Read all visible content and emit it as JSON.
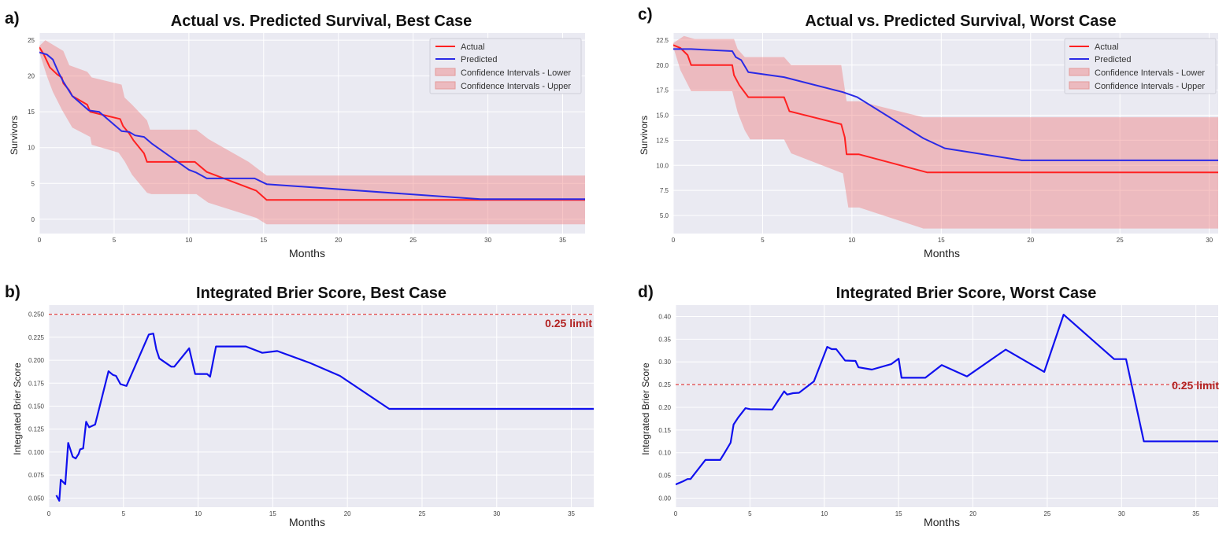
{
  "colors": {
    "actual": "#ff2020",
    "predicted": "#2a2ae6",
    "ci_fill": "#f08080",
    "brier": "#1010ee",
    "limit": "#e03030",
    "plot_bg": "#eaeaf2",
    "grid": "#ffffff"
  },
  "chart_data": [
    {
      "id": "a",
      "panel_label": "a)",
      "type": "line",
      "title": "Actual vs. Predicted Survival, Best Case",
      "xlabel": "Months",
      "ylabel": "Survivors",
      "xlim": [
        0,
        36.5
      ],
      "ylim": [
        -2,
        26
      ],
      "xticks": [
        0,
        5,
        10,
        15,
        20,
        25,
        30,
        35
      ],
      "yticks": [
        0,
        5,
        10,
        15,
        20,
        25
      ],
      "grid": true,
      "legend_position": "top-right",
      "legend": [
        "Actual",
        "Predicted",
        "Confidence Intervals - Lower",
        "Confidence Intervals - Upper"
      ],
      "actual": [
        [
          0,
          24
        ],
        [
          0.3,
          23
        ],
        [
          0.7,
          21.2
        ],
        [
          1.2,
          20.2
        ],
        [
          1.5,
          19.8
        ],
        [
          1.6,
          19
        ],
        [
          2,
          18
        ],
        [
          2.2,
          17.2
        ],
        [
          3.2,
          16
        ],
        [
          3.4,
          15
        ],
        [
          5.4,
          14
        ],
        [
          5.6,
          13
        ],
        [
          6,
          12
        ],
        [
          6.3,
          11
        ],
        [
          7,
          9.2
        ],
        [
          7.2,
          8
        ],
        [
          10.4,
          8
        ],
        [
          11.2,
          6.6
        ],
        [
          14.5,
          4
        ],
        [
          15.2,
          2.7
        ],
        [
          36.5,
          2.7
        ]
      ],
      "predicted": [
        [
          0,
          23.3
        ],
        [
          0.5,
          23
        ],
        [
          0.9,
          22.3
        ],
        [
          1.3,
          20.4
        ],
        [
          1.6,
          19.2
        ],
        [
          2.2,
          17.2
        ],
        [
          3.3,
          15.2
        ],
        [
          4,
          15
        ],
        [
          5.5,
          12.3
        ],
        [
          6,
          12.2
        ],
        [
          6.4,
          11.7
        ],
        [
          7,
          11.5
        ],
        [
          7.5,
          10.6
        ],
        [
          10,
          6.9
        ],
        [
          10.5,
          6.5
        ],
        [
          11.2,
          5.7
        ],
        [
          14.4,
          5.7
        ],
        [
          15.2,
          4.9
        ],
        [
          29.5,
          2.8
        ],
        [
          36.5,
          2.8
        ]
      ],
      "ci_upper": [
        [
          0,
          24.2
        ],
        [
          0.4,
          25
        ],
        [
          1.2,
          24
        ],
        [
          1.6,
          23.5
        ],
        [
          2,
          21.5
        ],
        [
          3.2,
          20.6
        ],
        [
          3.5,
          19.8
        ],
        [
          5.5,
          18.8
        ],
        [
          5.7,
          17
        ],
        [
          6.2,
          16
        ],
        [
          7.2,
          13.8
        ],
        [
          7.4,
          12.5
        ],
        [
          10.5,
          12.5
        ],
        [
          11.3,
          11.2
        ],
        [
          14,
          8
        ],
        [
          15.2,
          6.1
        ],
        [
          36.5,
          6.1
        ]
      ],
      "ci_lower": [
        [
          0,
          23.3
        ],
        [
          0.5,
          20
        ],
        [
          0.9,
          17.8
        ],
        [
          1.5,
          15.3
        ],
        [
          2.2,
          12.8
        ],
        [
          3.4,
          11.5
        ],
        [
          3.5,
          10.4
        ],
        [
          5.3,
          9.3
        ],
        [
          5.7,
          8.1
        ],
        [
          6.2,
          6.2
        ],
        [
          7.2,
          3.7
        ],
        [
          7.5,
          3.5
        ],
        [
          10.5,
          3.5
        ],
        [
          11.3,
          2.3
        ],
        [
          14.5,
          0.2
        ],
        [
          15.2,
          -0.7
        ],
        [
          36.5,
          -0.7
        ]
      ]
    },
    {
      "id": "c",
      "panel_label": "c)",
      "type": "line",
      "title": "Actual vs. Predicted Survival, Worst Case",
      "xlabel": "Months",
      "ylabel": "Survivors",
      "xlim": [
        0,
        30.5
      ],
      "ylim": [
        3.2,
        23.2
      ],
      "xticks": [
        0,
        5,
        10,
        15,
        20,
        25,
        30
      ],
      "yticks": [
        5.0,
        7.5,
        10.0,
        12.5,
        15.0,
        17.5,
        20.0,
        22.5
      ],
      "ytick_labels": [
        "5.0",
        "7.5",
        "10.0",
        "12.5",
        "15.0",
        "17.5",
        "20.0",
        "22.5"
      ],
      "grid": true,
      "legend_position": "top-right",
      "legend": [
        "Actual",
        "Predicted",
        "Confidence Intervals - Lower",
        "Confidence Intervals - Upper"
      ],
      "actual": [
        [
          0,
          22
        ],
        [
          0.4,
          21.7
        ],
        [
          0.8,
          21
        ],
        [
          1,
          20
        ],
        [
          3.3,
          20
        ],
        [
          3.4,
          19
        ],
        [
          3.7,
          18
        ],
        [
          4.2,
          16.8
        ],
        [
          6.2,
          16.8
        ],
        [
          6.5,
          15.4
        ],
        [
          9.4,
          14.1
        ],
        [
          9.6,
          12.8
        ],
        [
          9.7,
          11.1
        ],
        [
          10.4,
          11.1
        ],
        [
          14.2,
          9.3
        ],
        [
          30.5,
          9.3
        ]
      ],
      "predicted": [
        [
          0,
          21.6
        ],
        [
          1,
          21.6
        ],
        [
          3.3,
          21.4
        ],
        [
          3.5,
          20.8
        ],
        [
          3.8,
          20.5
        ],
        [
          4.2,
          19.3
        ],
        [
          6.2,
          18.8
        ],
        [
          9.5,
          17.3
        ],
        [
          10.3,
          16.8
        ],
        [
          14,
          12.7
        ],
        [
          15.2,
          11.7
        ],
        [
          19.5,
          10.5
        ],
        [
          30.5,
          10.5
        ]
      ],
      "ci_upper": [
        [
          0,
          22.2
        ],
        [
          0.6,
          22.9
        ],
        [
          1.2,
          22.6
        ],
        [
          3.4,
          22.6
        ],
        [
          3.6,
          21.6
        ],
        [
          4,
          20.8
        ],
        [
          6.2,
          20.8
        ],
        [
          6.6,
          20
        ],
        [
          9.4,
          20
        ],
        [
          9.7,
          16.4
        ],
        [
          10.4,
          16.4
        ],
        [
          14,
          14.8
        ],
        [
          30.5,
          14.8
        ]
      ],
      "ci_lower": [
        [
          0,
          21.8
        ],
        [
          0.4,
          19.5
        ],
        [
          1,
          17.4
        ],
        [
          3.3,
          17.4
        ],
        [
          3.6,
          15.3
        ],
        [
          4,
          13.5
        ],
        [
          4.3,
          12.6
        ],
        [
          6.2,
          12.6
        ],
        [
          6.6,
          11.2
        ],
        [
          9.5,
          9.2
        ],
        [
          9.8,
          5.8
        ],
        [
          10.4,
          5.8
        ],
        [
          14,
          3.7
        ],
        [
          30.5,
          3.7
        ]
      ]
    },
    {
      "id": "b",
      "panel_label": "b)",
      "type": "line",
      "title": "Integrated Brier Score, Best Case",
      "xlabel": "Months",
      "ylabel": "Integrated Brier Score",
      "xlim": [
        0,
        36.5
      ],
      "ylim": [
        0.04,
        0.26
      ],
      "xticks": [
        0,
        5,
        10,
        15,
        20,
        25,
        30,
        35
      ],
      "yticks": [
        0.05,
        0.075,
        0.1,
        0.125,
        0.15,
        0.175,
        0.2,
        0.225,
        0.25
      ],
      "ytick_labels": [
        "0.050",
        "0.075",
        "0.100",
        "0.125",
        "0.150",
        "0.175",
        "0.200",
        "0.225",
        "0.250"
      ],
      "grid": true,
      "limit_value": 0.25,
      "limit_label": "0.25 limit",
      "brier": [
        [
          0.5,
          0.053
        ],
        [
          0.7,
          0.047
        ],
        [
          0.8,
          0.07
        ],
        [
          1.1,
          0.065
        ],
        [
          1.3,
          0.11
        ],
        [
          1.6,
          0.095
        ],
        [
          1.8,
          0.093
        ],
        [
          2,
          0.098
        ],
        [
          2.1,
          0.103
        ],
        [
          2.3,
          0.104
        ],
        [
          2.5,
          0.133
        ],
        [
          2.7,
          0.127
        ],
        [
          3.1,
          0.13
        ],
        [
          4,
          0.188
        ],
        [
          4.3,
          0.184
        ],
        [
          4.5,
          0.183
        ],
        [
          4.8,
          0.174
        ],
        [
          5.2,
          0.172
        ],
        [
          6.7,
          0.228
        ],
        [
          7,
          0.229
        ],
        [
          7.2,
          0.212
        ],
        [
          7.4,
          0.202
        ],
        [
          8.2,
          0.193
        ],
        [
          8.4,
          0.193
        ],
        [
          9.4,
          0.213
        ],
        [
          9.8,
          0.185
        ],
        [
          10.6,
          0.185
        ],
        [
          10.8,
          0.182
        ],
        [
          11.2,
          0.215
        ],
        [
          13.2,
          0.215
        ],
        [
          14.3,
          0.208
        ],
        [
          15.3,
          0.21
        ],
        [
          17.5,
          0.197
        ],
        [
          19.5,
          0.183
        ],
        [
          22.8,
          0.147
        ],
        [
          36.5,
          0.147
        ]
      ]
    },
    {
      "id": "d",
      "panel_label": "d)",
      "type": "line",
      "title": "Integrated Brier Score, Worst Case",
      "xlabel": "Months",
      "ylabel": "Integrated Brier Score",
      "xlim": [
        0,
        36.5
      ],
      "ylim": [
        -0.02,
        0.425
      ],
      "xticks": [
        0,
        5,
        10,
        15,
        20,
        25,
        30,
        35
      ],
      "yticks": [
        0,
        0.05,
        0.1,
        0.15,
        0.2,
        0.25,
        0.3,
        0.35,
        0.4
      ],
      "ytick_labels": [
        "0.00",
        "0.05",
        "0.10",
        "0.15",
        "0.20",
        "0.25",
        "0.30",
        "0.35",
        "0.40"
      ],
      "grid": true,
      "limit_value": 0.25,
      "limit_label": "0.25 limit",
      "brier": [
        [
          0,
          0.03
        ],
        [
          0.5,
          0.037
        ],
        [
          0.8,
          0.042
        ],
        [
          1,
          0.042
        ],
        [
          2,
          0.084
        ],
        [
          3,
          0.084
        ],
        [
          3.3,
          0.1
        ],
        [
          3.7,
          0.122
        ],
        [
          3.9,
          0.162
        ],
        [
          4.2,
          0.177
        ],
        [
          4.7,
          0.198
        ],
        [
          5,
          0.196
        ],
        [
          6.5,
          0.195
        ],
        [
          7.3,
          0.235
        ],
        [
          7.5,
          0.228
        ],
        [
          7.9,
          0.231
        ],
        [
          8.3,
          0.232
        ],
        [
          9.3,
          0.257
        ],
        [
          10.2,
          0.333
        ],
        [
          10.5,
          0.328
        ],
        [
          10.8,
          0.328
        ],
        [
          11.4,
          0.303
        ],
        [
          12.1,
          0.302
        ],
        [
          12.3,
          0.288
        ],
        [
          13.2,
          0.283
        ],
        [
          14.5,
          0.295
        ],
        [
          15,
          0.307
        ],
        [
          15.2,
          0.265
        ],
        [
          16.8,
          0.265
        ],
        [
          17.9,
          0.293
        ],
        [
          19.6,
          0.268
        ],
        [
          22.2,
          0.327
        ],
        [
          24.8,
          0.278
        ],
        [
          26.1,
          0.404
        ],
        [
          29.5,
          0.306
        ],
        [
          30.3,
          0.306
        ],
        [
          31.5,
          0.125
        ],
        [
          36.5,
          0.125
        ]
      ]
    }
  ]
}
